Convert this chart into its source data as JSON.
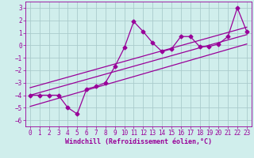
{
  "xlabel": "Windchill (Refroidissement éolien,°C)",
  "background_color": "#d0eeec",
  "grid_color": "#aacccc",
  "line_color": "#990099",
  "xlim": [
    -0.5,
    23.5
  ],
  "ylim": [
    -6.5,
    3.5
  ],
  "yticks": [
    -6,
    -5,
    -4,
    -3,
    -2,
    -1,
    0,
    1,
    2,
    3
  ],
  "xticks": [
    0,
    1,
    2,
    3,
    4,
    5,
    6,
    7,
    8,
    9,
    10,
    11,
    12,
    13,
    14,
    15,
    16,
    17,
    18,
    19,
    20,
    21,
    22,
    23
  ],
  "data_x": [
    0,
    1,
    2,
    3,
    4,
    5,
    6,
    7,
    8,
    9,
    10,
    11,
    12,
    13,
    14,
    15,
    16,
    17,
    18,
    19,
    20,
    21,
    22,
    23
  ],
  "data_y": [
    -4,
    -4,
    -4,
    -4,
    -5,
    -5.5,
    -3.5,
    -3.3,
    -3.0,
    -1.7,
    -0.2,
    1.9,
    1.1,
    0.2,
    -0.5,
    -0.3,
    0.7,
    0.7,
    -0.1,
    -0.1,
    0.1,
    0.7,
    3.0,
    1.1
  ],
  "line1_x": [
    0,
    23
  ],
  "line1_y": [
    -4.0,
    0.85
  ],
  "line2_x": [
    0,
    23
  ],
  "line2_y": [
    -3.4,
    1.45
  ],
  "line3_x": [
    0,
    23
  ],
  "line3_y": [
    -4.9,
    0.1
  ]
}
